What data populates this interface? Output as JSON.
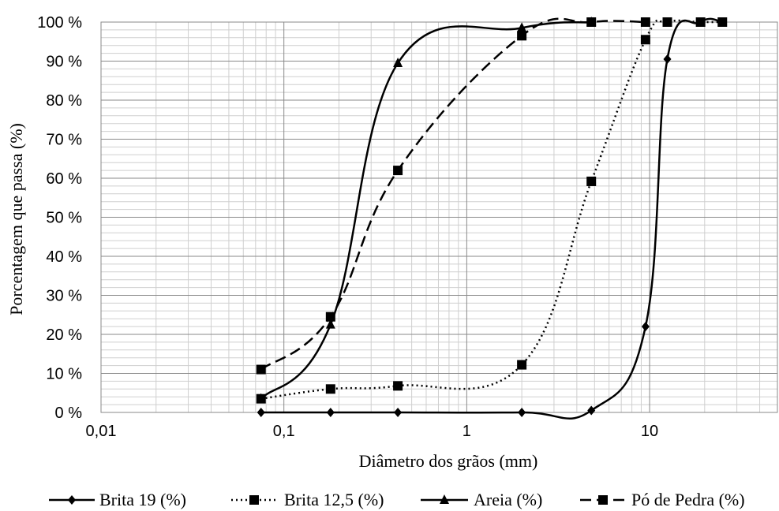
{
  "chart_data": {
    "type": "line",
    "title": "",
    "xlabel": "Diâmetro dos grãos (mm)",
    "ylabel": "Porcentagem que passa (%)",
    "xscale": "log",
    "xlim": [
      0.01,
      50
    ],
    "ylim": [
      0,
      100
    ],
    "x_ticks": [
      0.01,
      0.1,
      1,
      10
    ],
    "x_tick_labels": [
      "0,01",
      "0,1",
      "1",
      "10"
    ],
    "y_ticks": [
      0,
      10,
      20,
      30,
      40,
      50,
      60,
      70,
      80,
      90,
      100
    ],
    "y_tick_labels": [
      "0 %",
      "10 %",
      "20 %",
      "30 %",
      "40 %",
      "50 %",
      "60 %",
      "70 %",
      "80 %",
      "90 %",
      "100 %"
    ],
    "grid": true,
    "legend_position": "bottom",
    "series": [
      {
        "name": "Brita 19 (%)",
        "marker": "diamond",
        "dash": "solid",
        "color": "#000000",
        "x": [
          0.075,
          0.18,
          0.42,
          2.0,
          4.8,
          9.5,
          12.5,
          19,
          25
        ],
        "y": [
          0,
          0,
          0,
          0,
          0.5,
          22,
          90.5,
          100,
          100
        ]
      },
      {
        "name": "Brita 12,5 (%)",
        "marker": "square",
        "dash": "dotted",
        "color": "#000000",
        "x": [
          0.075,
          0.18,
          0.42,
          2.0,
          4.8,
          9.5,
          12.5,
          19,
          25
        ],
        "y": [
          3.5,
          6,
          6.8,
          12.2,
          59.2,
          95.5,
          100,
          100,
          100
        ]
      },
      {
        "name": "Areia (%)",
        "marker": "triangle",
        "dash": "solid",
        "color": "#000000",
        "x": [
          0.075,
          0.18,
          0.42,
          2.0,
          4.8
        ],
        "y": [
          3.5,
          22.5,
          89.5,
          98.5,
          100
        ]
      },
      {
        "name": "Pó de Pedra (%)",
        "marker": "square",
        "dash": "dashed",
        "color": "#000000",
        "x": [
          0.075,
          0.18,
          0.42,
          2.0,
          4.8,
          9.5
        ],
        "y": [
          11,
          24.5,
          62,
          96.5,
          100,
          100
        ]
      }
    ]
  }
}
